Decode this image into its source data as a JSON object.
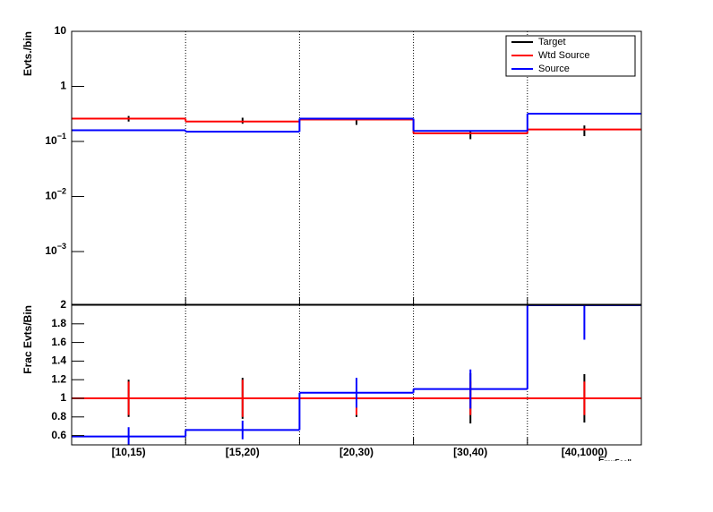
{
  "chart_data": [
    {
      "type": "step",
      "y_label": "Evts./bin",
      "log_y": true,
      "categories": [
        "[10,15)",
        "[15,20)",
        "[20,30)",
        "[30,40)",
        "[40,1000)"
      ],
      "ylim": [
        0.00011,
        10
      ],
      "yticks": [
        {
          "value": 0.001,
          "label": "10",
          "exponent": "−3"
        },
        {
          "value": 0.01,
          "label": "10",
          "exponent": "−2"
        },
        {
          "value": 0.1,
          "label": "10",
          "exponent": "−1"
        },
        1,
        10
      ],
      "grid_x": true,
      "legend": "top-right",
      "series": [
        {
          "name": "Target",
          "color": "#000000",
          "style": "errorbar",
          "values": [
            0.26,
            0.24,
            0.23,
            0.135,
            0.16
          ],
          "errors": [
            0.03,
            0.03,
            0.03,
            0.025,
            0.035
          ]
        },
        {
          "name": "Wtd Source",
          "color": "#ff0000",
          "style": "line",
          "values": [
            0.26,
            0.23,
            0.25,
            0.14,
            0.165
          ]
        },
        {
          "name": "Source",
          "color": "#0000ff",
          "style": "line",
          "values": [
            0.16,
            0.15,
            0.26,
            0.155,
            0.32
          ]
        }
      ]
    },
    {
      "type": "step",
      "y_label": "Frac Evts/Bin",
      "log_y": false,
      "categories": [
        "[10,15)",
        "[15,20)",
        "[20,30)",
        "[30,40)",
        "[40,1000)"
      ],
      "x_label": "E",
      "x_label_sub": "muFcell",
      "ylim": [
        0.5,
        2.0
      ],
      "yticks": [
        0.6,
        0.8,
        1,
        1.2,
        1.4,
        1.6,
        1.8,
        2
      ],
      "grid_x": true,
      "series": [
        {
          "color": "#000000",
          "style": "errorbar",
          "values": [
            1,
            1,
            1,
            1,
            1
          ],
          "errors": [
            0.2,
            0.22,
            0.2,
            0.27,
            0.26
          ]
        },
        {
          "color": "#ff0000",
          "style": "line",
          "values": [
            1,
            1,
            1,
            1,
            1
          ],
          "errors": [
            0.18,
            0.2,
            0.18,
            0.18,
            0.18
          ]
        },
        {
          "color": "#0000ff",
          "style": "line",
          "values": [
            0.59,
            0.66,
            1.06,
            1.1,
            2.0
          ],
          "errors": [
            0.1,
            0.1,
            0.16,
            0.21,
            0.37
          ]
        }
      ]
    }
  ]
}
